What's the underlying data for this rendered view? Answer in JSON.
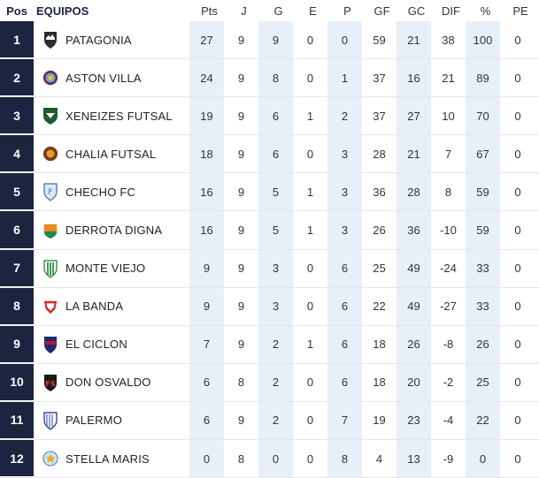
{
  "headers": {
    "pos": "Pos",
    "team": "EQUIPOS",
    "pts": "Pts",
    "j": "J",
    "g": "G",
    "e": "E",
    "p": "P",
    "gf": "GF",
    "gc": "GC",
    "dif": "DIF",
    "pct": "%",
    "pe": "PE"
  },
  "colors": {
    "navy": "#1b2540",
    "shade": "#e7f0f9",
    "divider": "#e4e6ea"
  },
  "rows": [
    {
      "pos": "1",
      "team": "PATAGONIA",
      "logo": "patagonia-crest-icon",
      "pts": "27",
      "j": "9",
      "g": "9",
      "e": "0",
      "p": "0",
      "gf": "59",
      "gc": "21",
      "dif": "38",
      "pct": "100",
      "pe": "0"
    },
    {
      "pos": "2",
      "team": "ASTON VILLA",
      "logo": "aston-villa-crest-icon",
      "pts": "24",
      "j": "9",
      "g": "8",
      "e": "0",
      "p": "1",
      "gf": "37",
      "gc": "16",
      "dif": "21",
      "pct": "89",
      "pe": "0"
    },
    {
      "pos": "3",
      "team": "XENEIZES FUTSAL",
      "logo": "xeneizes-crest-icon",
      "pts": "19",
      "j": "9",
      "g": "6",
      "e": "1",
      "p": "2",
      "gf": "37",
      "gc": "27",
      "dif": "10",
      "pct": "70",
      "pe": "0"
    },
    {
      "pos": "4",
      "team": "CHALIA FUTSAL",
      "logo": "chalia-crest-icon",
      "pts": "18",
      "j": "9",
      "g": "6",
      "e": "0",
      "p": "3",
      "gf": "28",
      "gc": "21",
      "dif": "7",
      "pct": "67",
      "pe": "0"
    },
    {
      "pos": "5",
      "team": "CHECHO FC",
      "logo": "checho-crest-icon",
      "pts": "16",
      "j": "9",
      "g": "5",
      "e": "1",
      "p": "3",
      "gf": "36",
      "gc": "28",
      "dif": "8",
      "pct": "59",
      "pe": "0"
    },
    {
      "pos": "6",
      "team": "DERROTA DIGNA",
      "logo": "derrota-digna-crest-icon",
      "pts": "16",
      "j": "9",
      "g": "5",
      "e": "1",
      "p": "3",
      "gf": "26",
      "gc": "36",
      "dif": "-10",
      "pct": "59",
      "pe": "0"
    },
    {
      "pos": "7",
      "team": "MONTE VIEJO",
      "logo": "monte-viejo-crest-icon",
      "pts": "9",
      "j": "9",
      "g": "3",
      "e": "0",
      "p": "6",
      "gf": "25",
      "gc": "49",
      "dif": "-24",
      "pct": "33",
      "pe": "0"
    },
    {
      "pos": "8",
      "team": "LA BANDA",
      "logo": "la-banda-crest-icon",
      "pts": "9",
      "j": "9",
      "g": "3",
      "e": "0",
      "p": "6",
      "gf": "22",
      "gc": "49",
      "dif": "-27",
      "pct": "33",
      "pe": "0"
    },
    {
      "pos": "9",
      "team": "EL CICLON",
      "logo": "el-ciclon-crest-icon",
      "pts": "7",
      "j": "9",
      "g": "2",
      "e": "1",
      "p": "6",
      "gf": "18",
      "gc": "26",
      "dif": "-8",
      "pct": "26",
      "pe": "0"
    },
    {
      "pos": "10",
      "team": "DON OSVALDO",
      "logo": "don-osvaldo-crest-icon",
      "pts": "6",
      "j": "8",
      "g": "2",
      "e": "0",
      "p": "6",
      "gf": "18",
      "gc": "20",
      "dif": "-2",
      "pct": "25",
      "pe": "0"
    },
    {
      "pos": "11",
      "team": "PALERMO",
      "logo": "palermo-crest-icon",
      "pts": "6",
      "j": "9",
      "g": "2",
      "e": "0",
      "p": "7",
      "gf": "19",
      "gc": "23",
      "dif": "-4",
      "pct": "22",
      "pe": "0"
    },
    {
      "pos": "12",
      "team": "STELLA MARIS",
      "logo": "stella-maris-crest-icon",
      "pts": "0",
      "j": "8",
      "g": "0",
      "e": "0",
      "p": "8",
      "gf": "4",
      "gc": "13",
      "dif": "-9",
      "pct": "0",
      "pe": "0"
    }
  ]
}
